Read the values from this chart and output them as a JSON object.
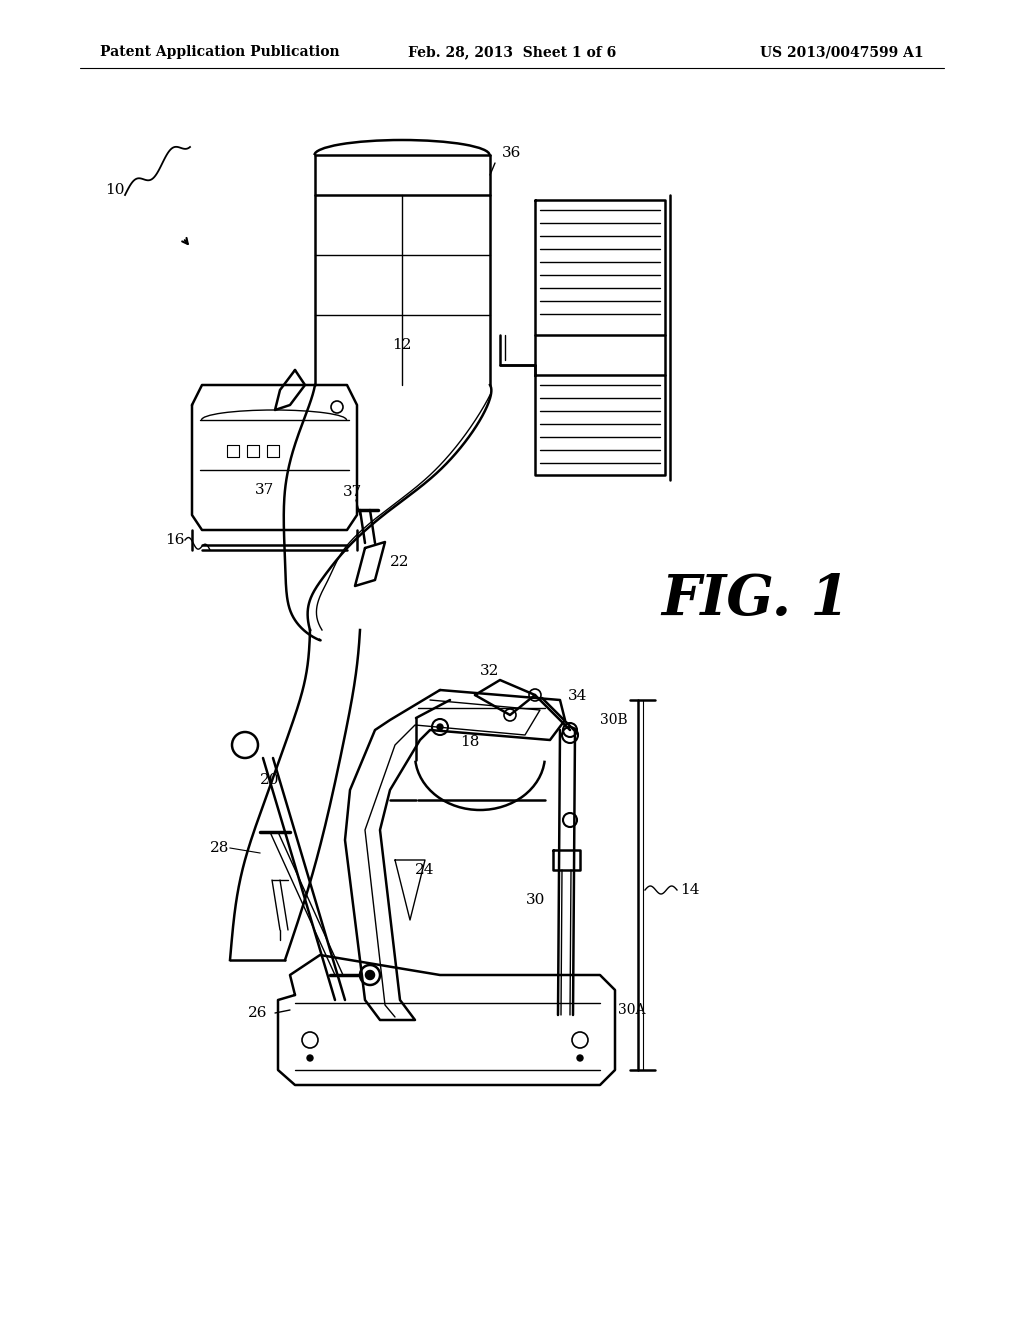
{
  "bg_color": "#ffffff",
  "line_color": "#000000",
  "header_left": "Patent Application Publication",
  "header_center": "Feb. 28, 2013  Sheet 1 of 6",
  "header_right": "US 2013/0047599 A1",
  "fig_label": "FIG. 1",
  "lw_main": 1.8,
  "lw_thin": 1.0,
  "lw_thick": 2.5
}
